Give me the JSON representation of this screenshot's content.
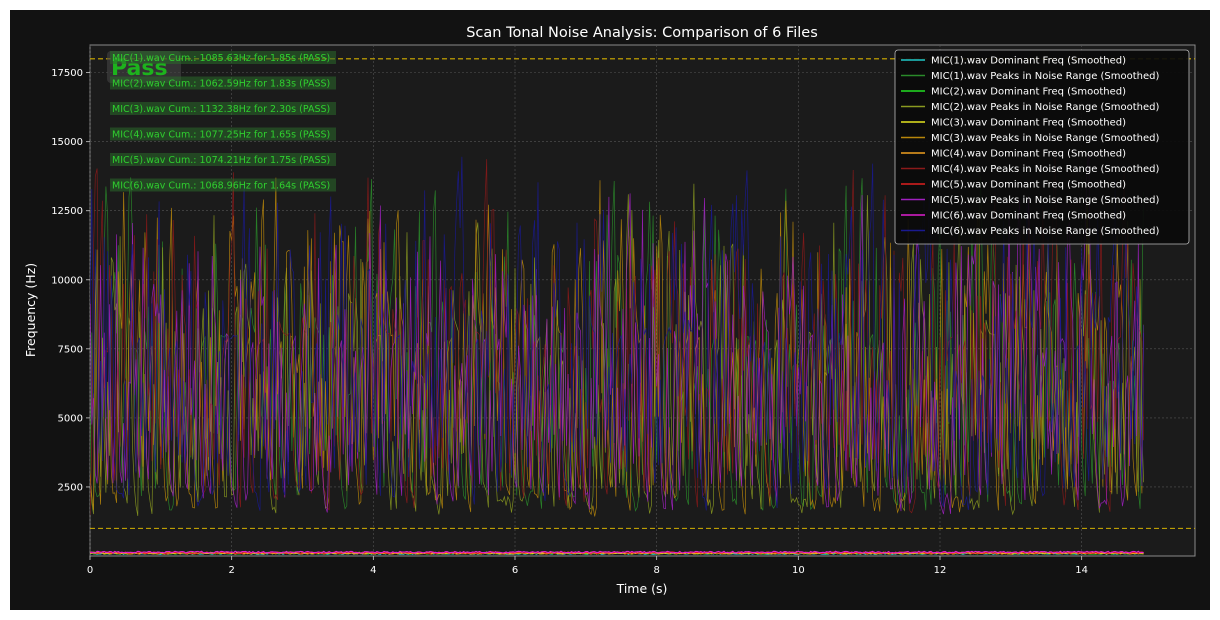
{
  "chart_data": {
    "type": "line",
    "title": "Scan Tonal Noise Analysis: Comparison of 6 Files",
    "xlabel": "Time (s)",
    "ylabel": "Frequency (Hz)",
    "xlim": [
      0,
      15.6
    ],
    "ylim": [
      0,
      18500
    ],
    "x_ticks": [
      0,
      2,
      4,
      6,
      8,
      10,
      12,
      14
    ],
    "y_ticks": [
      2500,
      5000,
      7500,
      10000,
      12500,
      15000,
      17500
    ],
    "grid": true,
    "legend_position": "top-right",
    "threshold_lines": [
      {
        "y": 18000,
        "color": "#d4b000"
      },
      {
        "y": 1000,
        "color": "#d4b000"
      }
    ],
    "status": {
      "text": "Pass",
      "color": "#1db31d"
    },
    "annotations": [
      "MIC(1).wav Cum.: 1085.63Hz for 1.85s (PASS)",
      "MIC(2).wav Cum.: 1062.59Hz for 1.83s (PASS)",
      "MIC(3).wav Cum.: 1132.38Hz for 2.30s (PASS)",
      "MIC(4).wav Cum.: 1077.25Hz for 1.65s (PASS)",
      "MIC(5).wav Cum.: 1074.21Hz for 1.75s (PASS)",
      "MIC(6).wav Cum.: 1068.96Hz for 1.64s (PASS)"
    ],
    "series": [
      {
        "name": "MIC(1).wav Dominant Freq (Smoothed)",
        "color": "#20c8c8",
        "kind": "dominant",
        "level": 60,
        "spread": 50,
        "x_end": 14.9
      },
      {
        "name": "MIC(1).wav Peaks in Noise Range (Smoothed)",
        "color": "#2a8a2a",
        "kind": "peaks",
        "seed": 11,
        "density": 0.55,
        "low": 1300,
        "high": 15500,
        "x_end": 14.9
      },
      {
        "name": "MIC(2).wav Dominant Freq (Smoothed)",
        "color": "#22e022",
        "kind": "dominant",
        "level": 70,
        "spread": 60,
        "x_end": 14.9
      },
      {
        "name": "MIC(2).wav Peaks in Noise Range (Smoothed)",
        "color": "#8a9a20",
        "kind": "peaks",
        "seed": 23,
        "density": 0.6,
        "low": 1200,
        "high": 15500,
        "x_end": 14.9
      },
      {
        "name": "MIC(3).wav Dominant Freq (Smoothed)",
        "color": "#e4e420",
        "kind": "dominant",
        "level": 80,
        "spread": 60,
        "x_end": 14.9
      },
      {
        "name": "MIC(3).wav Peaks in Noise Range (Smoothed)",
        "color": "#b8860b",
        "kind": "peaks",
        "seed": 37,
        "density": 0.6,
        "low": 1200,
        "high": 16500,
        "x_end": 14.9
      },
      {
        "name": "MIC(4).wav Dominant Freq (Smoothed)",
        "color": "#f0a020",
        "kind": "dominant",
        "level": 70,
        "spread": 50,
        "x_end": 14.9
      },
      {
        "name": "MIC(4).wav Peaks in Noise Range (Smoothed)",
        "color": "#8b1a1a",
        "kind": "peaks",
        "seed": 41,
        "density": 0.5,
        "low": 1300,
        "high": 15800,
        "x_end": 14.9
      },
      {
        "name": "MIC(5).wav Dominant Freq (Smoothed)",
        "color": "#e02020",
        "kind": "dominant",
        "level": 90,
        "spread": 60,
        "x_end": 14.9
      },
      {
        "name": "MIC(5).wav Peaks in Noise Range (Smoothed)",
        "color": "#a020c0",
        "kind": "peaks",
        "seed": 53,
        "density": 0.55,
        "low": 1300,
        "high": 15500,
        "x_end": 14.9
      },
      {
        "name": "MIC(6).wav Dominant Freq (Smoothed)",
        "color": "#e020d0",
        "kind": "dominant",
        "level": 110,
        "spread": 60,
        "x_end": 14.9
      },
      {
        "name": "MIC(6).wav Peaks in Noise Range (Smoothed)",
        "color": "#1a1a90",
        "kind": "peaks",
        "seed": 67,
        "density": 0.5,
        "low": 1400,
        "high": 16000,
        "x_end": 14.9
      }
    ]
  }
}
